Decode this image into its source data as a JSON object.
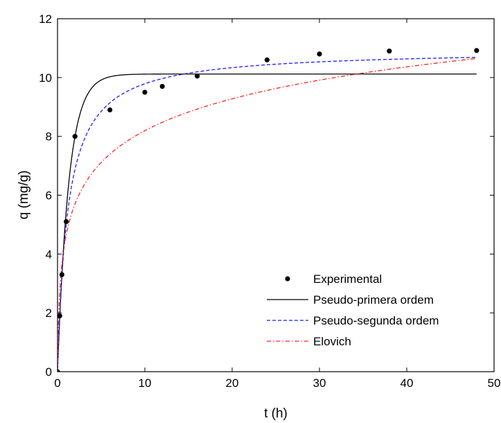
{
  "chart_data": {
    "type": "scatter",
    "title": "",
    "xlabel": "t (h)",
    "ylabel": "q (mg/g)",
    "xlim": [
      0,
      50
    ],
    "ylim": [
      0,
      12
    ],
    "xticks": [
      0,
      10,
      20,
      30,
      40,
      50
    ],
    "yticks": [
      0,
      2,
      4,
      6,
      8,
      10,
      12
    ],
    "grid": false,
    "legend_position": "bottom-right",
    "series": [
      {
        "name": "Experimental",
        "kind": "points",
        "color": "#000000",
        "x": [
          0,
          0.25,
          0.5,
          1,
          2,
          6,
          10,
          12,
          16,
          24,
          30,
          38,
          48
        ],
        "y": [
          0,
          1.9,
          3.3,
          5.1,
          8.0,
          8.9,
          9.5,
          9.7,
          10.05,
          10.6,
          10.8,
          10.9,
          10.92
        ]
      },
      {
        "name": "Pseudo-primera ordem",
        "kind": "line",
        "color": "#000000",
        "dash": "solid",
        "model": "pfo",
        "params": {
          "qe": 10.12,
          "k1": 0.78
        }
      },
      {
        "name": "Pseudo-segunda ordem",
        "kind": "line",
        "color": "#1a1aff",
        "dash": "dash",
        "model": "pso",
        "params": {
          "qe": 10.95,
          "k2": 0.077
        }
      },
      {
        "name": "Elovich",
        "kind": "line",
        "color": "#ff2020",
        "dash": "dashdot",
        "model": "elovich",
        "params": {
          "alpha": 28.85,
          "beta": 0.637
        }
      }
    ]
  }
}
